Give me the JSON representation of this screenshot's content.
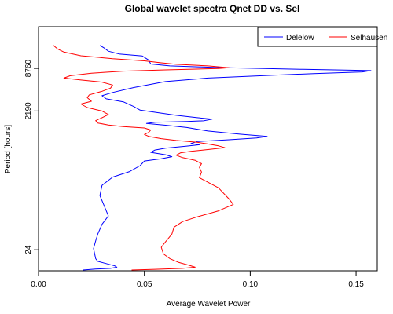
{
  "chart_data": {
    "type": "line",
    "title": "Global wavelet spectra  Qnet DD vs. Sel",
    "xlabel": "Average Wavelet Power",
    "ylabel": "Period [hours]",
    "xlim": [
      0.0,
      0.16
    ],
    "ylim": [
      12.1,
      33960
    ],
    "y_scale": "log",
    "x_ticks": [
      0.0,
      0.05,
      0.1,
      0.15
    ],
    "x_tick_labels": [
      "0.00",
      "0.05",
      "0.10",
      "0.15"
    ],
    "y_ticks": [
      24,
      2190,
      8760
    ],
    "y_tick_labels": [
      "24",
      "2190",
      "8760"
    ],
    "legend": {
      "position": "top-right",
      "entries": [
        "Delelow",
        "Selhausen"
      ]
    },
    "grid": false,
    "series": [
      {
        "name": "Delelow",
        "color": "#0000ff",
        "points": [
          [
            0.029,
            18500
          ],
          [
            0.031,
            17000
          ],
          [
            0.033,
            15300
          ],
          [
            0.038,
            14000
          ],
          [
            0.049,
            13100
          ],
          [
            0.052,
            11500
          ],
          [
            0.053,
            10100
          ],
          [
            0.062,
            9500
          ],
          [
            0.085,
            9000
          ],
          [
            0.125,
            8500
          ],
          [
            0.157,
            8150
          ],
          [
            0.153,
            7800
          ],
          [
            0.13,
            7400
          ],
          [
            0.11,
            7000
          ],
          [
            0.08,
            6400
          ],
          [
            0.06,
            5700
          ],
          [
            0.045,
            4700
          ],
          [
            0.035,
            4000
          ],
          [
            0.03,
            3600
          ],
          [
            0.032,
            3250
          ],
          [
            0.04,
            2950
          ],
          [
            0.045,
            2530
          ],
          [
            0.048,
            2250
          ],
          [
            0.055,
            2100
          ],
          [
            0.065,
            1900
          ],
          [
            0.075,
            1760
          ],
          [
            0.082,
            1680
          ],
          [
            0.078,
            1590
          ],
          [
            0.07,
            1560
          ],
          [
            0.055,
            1520
          ],
          [
            0.051,
            1460
          ],
          [
            0.06,
            1380
          ],
          [
            0.07,
            1280
          ],
          [
            0.08,
            1140
          ],
          [
            0.095,
            1030
          ],
          [
            0.108,
            960
          ],
          [
            0.103,
            910
          ],
          [
            0.09,
            860
          ],
          [
            0.075,
            810
          ],
          [
            0.072,
            760
          ],
          [
            0.076,
            730
          ],
          [
            0.07,
            700
          ],
          [
            0.06,
            655
          ],
          [
            0.055,
            615
          ],
          [
            0.053,
            570
          ],
          [
            0.06,
            528
          ],
          [
            0.063,
            495
          ],
          [
            0.058,
            462
          ],
          [
            0.05,
            430
          ],
          [
            0.048,
            370
          ],
          [
            0.043,
            305
          ],
          [
            0.035,
            255
          ],
          [
            0.03,
            195
          ],
          [
            0.029,
            140
          ],
          [
            0.033,
            72
          ],
          [
            0.03,
            55
          ],
          [
            0.028,
            40
          ],
          [
            0.027,
            32
          ],
          [
            0.026,
            25
          ],
          [
            0.027,
            18
          ],
          [
            0.028,
            16.5
          ],
          [
            0.032,
            15.3
          ],
          [
            0.036,
            14.2
          ],
          [
            0.037,
            13.6
          ],
          [
            0.034,
            13.1
          ],
          [
            0.027,
            12.8
          ],
          [
            0.021,
            12.4
          ]
        ]
      },
      {
        "name": "Selhausen",
        "color": "#ff0000",
        "points": [
          [
            0.007,
            18500
          ],
          [
            0.009,
            16500
          ],
          [
            0.012,
            14900
          ],
          [
            0.02,
            13200
          ],
          [
            0.035,
            12000
          ],
          [
            0.05,
            11200
          ],
          [
            0.058,
            10500
          ],
          [
            0.065,
            10000
          ],
          [
            0.08,
            9500
          ],
          [
            0.09,
            8950
          ],
          [
            0.085,
            8700
          ],
          [
            0.06,
            8350
          ],
          [
            0.04,
            8000
          ],
          [
            0.025,
            7500
          ],
          [
            0.015,
            6900
          ],
          [
            0.012,
            6400
          ],
          [
            0.02,
            6000
          ],
          [
            0.03,
            5600
          ],
          [
            0.035,
            5100
          ],
          [
            0.034,
            4600
          ],
          [
            0.03,
            4150
          ],
          [
            0.024,
            3700
          ],
          [
            0.023,
            3380
          ],
          [
            0.025,
            3000
          ],
          [
            0.02,
            2750
          ],
          [
            0.023,
            2450
          ],
          [
            0.03,
            2190
          ],
          [
            0.033,
            1950
          ],
          [
            0.03,
            1760
          ],
          [
            0.027,
            1600
          ],
          [
            0.028,
            1480
          ],
          [
            0.033,
            1390
          ],
          [
            0.04,
            1320
          ],
          [
            0.05,
            1260
          ],
          [
            0.053,
            1180
          ],
          [
            0.052,
            1090
          ],
          [
            0.05,
            1020
          ],
          [
            0.052,
            960
          ],
          [
            0.058,
            890
          ],
          [
            0.065,
            840
          ],
          [
            0.075,
            790
          ],
          [
            0.08,
            750
          ],
          [
            0.085,
            705
          ],
          [
            0.088,
            665
          ],
          [
            0.08,
            625
          ],
          [
            0.072,
            590
          ],
          [
            0.067,
            560
          ],
          [
            0.065,
            520
          ],
          [
            0.068,
            480
          ],
          [
            0.074,
            440
          ],
          [
            0.077,
            395
          ],
          [
            0.076,
            350
          ],
          [
            0.077,
            300
          ],
          [
            0.076,
            250
          ],
          [
            0.085,
            180
          ],
          [
            0.09,
            125
          ],
          [
            0.092,
            105
          ],
          [
            0.085,
            85
          ],
          [
            0.075,
            70
          ],
          [
            0.068,
            60
          ],
          [
            0.064,
            50
          ],
          [
            0.063,
            40
          ],
          [
            0.06,
            31
          ],
          [
            0.058,
            26
          ],
          [
            0.059,
            21
          ],
          [
            0.062,
            18
          ],
          [
            0.066,
            16
          ],
          [
            0.071,
            14.5
          ],
          [
            0.074,
            13.6
          ],
          [
            0.068,
            13.1
          ],
          [
            0.055,
            12.7
          ],
          [
            0.044,
            12.4
          ]
        ]
      }
    ]
  }
}
